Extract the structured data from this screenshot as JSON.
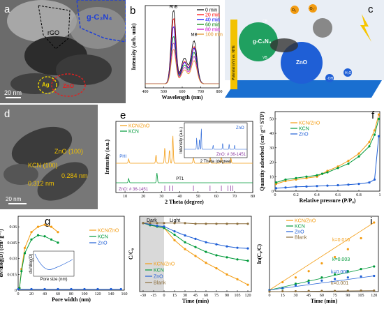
{
  "panels": {
    "a": {
      "letter": "a",
      "labels": {
        "rgo": "rGO",
        "gcn": "g-C₃N₄",
        "ag": "Ag",
        "zno": "ZnO"
      },
      "scale": "20 nm"
    },
    "b": {
      "letter": "b",
      "peak1": "RhB",
      "peak2": "MB",
      "xlabel": "Wavelength (nm)",
      "ylabel": "Intensity (arb. unit)"
    },
    "c": {
      "letter": "c",
      "labels": {
        "o2": "O₂",
        "o2rad": "·O₂⁻",
        "cb": "CB",
        "vb": "VB",
        "gcn": "g-C₃N₄",
        "zno": "ZnO",
        "oh": "·OH",
        "h2o": "H₂O",
        "side": "Potential (eV) vs. NHE"
      }
    },
    "d": {
      "letter": "d",
      "kcn": "KCN (100)",
      "zno": "ZnO (100)",
      "d1": "0.284 nm",
      "d2": "0.312 nm",
      "scale": "20 nm"
    },
    "e": {
      "letter": "e",
      "xlabel": "2 Theta (degree)",
      "ylabel": "Intensity (a.u.)",
      "inset_xlabel": "2 Theta (degree)",
      "inset_ylabel": "Intensity (a.u.)",
      "inset_label": "ZnO",
      "pdf_inset": "ZnO: # 36-1451",
      "pdf_main": "ZnO: # 36-1451",
      "ph": "PHI",
      "pt": "PT1"
    },
    "f": {
      "letter": "f",
      "xlabel": "Relative pressure (P/P₀)",
      "ylabel": "Quantity adsorbed (cm³ g⁻¹ STP)"
    },
    "g": {
      "letter": "g",
      "xlabel": "Pore width (nm)",
      "ylabel": "dv/dlog(D) (cm³ g⁻¹)",
      "inset_xlabel": "Pore size (nm)",
      "inset_ylabel": "dV/dlog(D)"
    },
    "h": {
      "letter": "h",
      "xlabel": "Time (min)",
      "ylabel": "C/C₀",
      "dark": "Dark",
      "light": "Light"
    },
    "i": {
      "letter": "i",
      "xlabel": "Time (min)",
      "ylabel": "ln(C₀/C)"
    }
  },
  "chart_data": [
    {
      "panel": "b",
      "type": "line",
      "title": "",
      "xlabel": "Wavelength (nm)",
      "ylabel": "Intensity (arb. unit)",
      "xlim": [
        400,
        800
      ],
      "ylim": [
        0,
        1
      ],
      "x_ticks": [
        400,
        500,
        600,
        700,
        800
      ],
      "legend_position": "top-right",
      "series": [
        {
          "name": "0 min",
          "color": "#000000",
          "rhb": 0.9,
          "mb": 0.52
        },
        {
          "name": "20 min",
          "color": "#ff0000",
          "rhb": 0.8,
          "mb": 0.45
        },
        {
          "name": "40 min",
          "color": "#0000ff",
          "rhb": 0.7,
          "mb": 0.43
        },
        {
          "name": "60 min",
          "color": "#008000",
          "rhb": 0.58,
          "mb": 0.38
        },
        {
          "name": "80 min",
          "color": "#cc00cc",
          "rhb": 0.5,
          "mb": 0.33
        },
        {
          "name": "100 min",
          "color": "#e09020",
          "rhb": 0.42,
          "mb": 0.28
        }
      ]
    },
    {
      "panel": "e",
      "type": "line",
      "title": "",
      "xlabel": "2 Theta (degree)",
      "ylabel": "Intensity (a.u.)",
      "xlim": [
        5,
        80
      ],
      "x_ticks": [
        10,
        20,
        30,
        40,
        50,
        60,
        70,
        80
      ],
      "legend_position": "top-left",
      "series": [
        {
          "name": "KCN/ZnO",
          "color": "#f39c12",
          "peaks": [
            [
              12,
              0.15
            ],
            [
              27,
              0.3
            ],
            [
              31.8,
              0.55
            ],
            [
              34.4,
              0.5
            ],
            [
              36.2,
              1.0
            ],
            [
              47.5,
              0.2
            ],
            [
              56.6,
              0.3
            ],
            [
              62.8,
              0.25
            ],
            [
              68,
              0.2
            ]
          ]
        },
        {
          "name": "KCN",
          "color": "#009a3a",
          "peaks": [
            [
              12,
              0.15
            ],
            [
              27.5,
              0.35
            ]
          ]
        }
      ],
      "reference_lines": [
        31.8,
        34.4,
        36.2,
        47.5,
        56.6,
        62.8,
        66.4,
        67.9,
        69.1
      ]
    },
    {
      "panel": "f",
      "type": "line",
      "title": "",
      "xlabel": "Relative pressure (P/P₀)",
      "ylabel": "Quantity adsorbed (cm³ g⁻¹ STP)",
      "xlim": [
        0,
        1
      ],
      "ylim": [
        0,
        55
      ],
      "x_ticks": [
        0.0,
        0.2,
        0.4,
        0.6,
        0.8,
        1.0
      ],
      "y_ticks": [
        0,
        10,
        20,
        30,
        40,
        50
      ],
      "legend_position": "top-left",
      "series": [
        {
          "name": "KCN/ZnO",
          "color": "#f39c12",
          "x": [
            0.01,
            0.1,
            0.2,
            0.3,
            0.4,
            0.45,
            0.5,
            0.6,
            0.7,
            0.8,
            0.9,
            0.95,
            0.99
          ],
          "y": [
            5,
            7,
            8,
            9,
            10,
            12,
            14,
            17,
            21,
            26,
            34,
            42,
            53
          ]
        },
        {
          "name": "KCN",
          "color": "#009a3a",
          "x": [
            0.01,
            0.1,
            0.2,
            0.3,
            0.4,
            0.45,
            0.5,
            0.6,
            0.7,
            0.8,
            0.9,
            0.95,
            0.99
          ],
          "y": [
            6,
            8,
            9,
            10,
            11,
            12,
            13,
            16,
            19,
            24,
            31,
            39,
            50
          ]
        },
        {
          "name": "ZnO",
          "color": "#1f5fd6",
          "x": [
            0.01,
            0.1,
            0.2,
            0.3,
            0.4,
            0.5,
            0.6,
            0.7,
            0.8,
            0.9,
            0.95,
            0.99
          ],
          "y": [
            2,
            2.5,
            3,
            3.2,
            3.5,
            3.8,
            4.1,
            4.5,
            5,
            6,
            8,
            38
          ]
        }
      ]
    },
    {
      "panel": "g",
      "type": "line",
      "title": "",
      "xlabel": "Pore width (nm)",
      "ylabel": "dv/dlog(D) (cm³ g⁻¹)",
      "xlim": [
        0,
        160
      ],
      "ylim": [
        0,
        0.07
      ],
      "x_ticks": [
        0,
        20,
        40,
        60,
        80,
        100,
        120,
        140,
        160
      ],
      "y_ticks": [
        0.0,
        0.015,
        0.03,
        0.045,
        0.06
      ],
      "legend_position": "top-right",
      "series": [
        {
          "name": "KCN/ZnO",
          "color": "#f39c12",
          "x": [
            2,
            5,
            10,
            20,
            30,
            40,
            50,
            60
          ],
          "y": [
            0.002,
            0.02,
            0.04,
            0.055,
            0.06,
            0.062,
            0.06,
            0.055
          ]
        },
        {
          "name": "KCN",
          "color": "#009a3a",
          "x": [
            2,
            5,
            10,
            20,
            30,
            40,
            50,
            60
          ],
          "y": [
            0.002,
            0.018,
            0.035,
            0.048,
            0.052,
            0.051,
            0.048,
            0.045
          ]
        },
        {
          "name": "ZnO",
          "color": "#1f5fd6",
          "x": [
            0,
            20,
            40,
            60,
            80,
            100,
            120,
            140,
            155
          ],
          "y": [
            0.001,
            0.001,
            0.001,
            0.001,
            0.001,
            0.001,
            0.001,
            0.001,
            0.001
          ]
        }
      ]
    },
    {
      "panel": "h",
      "type": "line",
      "title": "",
      "xlabel": "Time (min)",
      "ylabel": "C/C₀",
      "xlim": [
        -35,
        125
      ],
      "ylim": [
        0,
        1.1
      ],
      "x_ticks": [
        -30,
        -15,
        0,
        15,
        30,
        45,
        60,
        75,
        90,
        105,
        120
      ],
      "legend_position": "bottom-left",
      "series": [
        {
          "name": "KCN/ZnO",
          "color": "#f39c12",
          "x": [
            -30,
            -20,
            -10,
            0,
            15,
            30,
            45,
            60,
            75,
            90,
            105,
            120
          ],
          "y": [
            1,
            0.97,
            0.95,
            0.93,
            0.75,
            0.62,
            0.52,
            0.42,
            0.34,
            0.25,
            0.18,
            0.1
          ]
        },
        {
          "name": "KCN",
          "color": "#009a3a",
          "x": [
            -30,
            -20,
            -10,
            0,
            15,
            30,
            45,
            60,
            75,
            90,
            105,
            120
          ],
          "y": [
            1,
            0.97,
            0.95,
            0.93,
            0.83,
            0.72,
            0.65,
            0.58,
            0.53,
            0.5,
            0.47,
            0.45
          ]
        },
        {
          "name": "ZnO",
          "color": "#1f5fd6",
          "x": [
            -30,
            -20,
            -10,
            0,
            15,
            30,
            45,
            60,
            75,
            90,
            105,
            120
          ],
          "y": [
            1,
            0.98,
            0.96,
            0.95,
            0.88,
            0.82,
            0.77,
            0.72,
            0.69,
            0.66,
            0.64,
            0.63
          ]
        },
        {
          "name": "Blank",
          "color": "#8b6d3b",
          "x": [
            -30,
            -20,
            -10,
            0,
            15,
            30,
            45,
            60,
            75,
            90,
            105,
            120
          ],
          "y": [
            1,
            1,
            1,
            1,
            1,
            1,
            0.99,
            0.99,
            0.99,
            0.99,
            0.99,
            0.99
          ]
        }
      ]
    },
    {
      "panel": "i",
      "type": "scatter",
      "title": "",
      "xlabel": "Time (min)",
      "ylabel": "ln(C₀/C)",
      "xlim": [
        0,
        125
      ],
      "ylim": [
        0,
        2.4
      ],
      "x_ticks": [
        0,
        15,
        30,
        45,
        60,
        75,
        90,
        105,
        120
      ],
      "legend_position": "top-left",
      "series": [
        {
          "name": "KCN/ZnO",
          "color": "#f39c12",
          "k": "k=0.016",
          "x": [
            0,
            15,
            30,
            45,
            60,
            75,
            90,
            105,
            120
          ],
          "y": [
            0.05,
            0.3,
            0.45,
            0.65,
            0.9,
            1.1,
            1.35,
            1.7,
            2.2
          ]
        },
        {
          "name": "KCN",
          "color": "#009a3a",
          "k": "k=0.003",
          "x": [
            0,
            15,
            30,
            45,
            60,
            75,
            90,
            105,
            120
          ],
          "y": [
            0.05,
            0.1,
            0.25,
            0.35,
            0.45,
            0.55,
            0.65,
            0.72,
            0.8
          ]
        },
        {
          "name": "ZnO",
          "color": "#1f5fd6",
          "k": "k=0.006",
          "x": [
            0,
            15,
            30,
            45,
            60,
            75,
            90,
            105,
            120
          ],
          "y": [
            0.05,
            0.12,
            0.2,
            0.28,
            0.35,
            0.4,
            0.45,
            0.48,
            0.5
          ]
        },
        {
          "name": "Blank",
          "color": "#8b6d3b",
          "k": "k=0.001",
          "x": [
            0,
            15,
            30,
            45,
            60,
            75,
            90,
            105,
            120
          ],
          "y": [
            0,
            0.01,
            0.01,
            0.02,
            0.02,
            0.02,
            0.03,
            0.03,
            0.03
          ]
        }
      ]
    }
  ]
}
